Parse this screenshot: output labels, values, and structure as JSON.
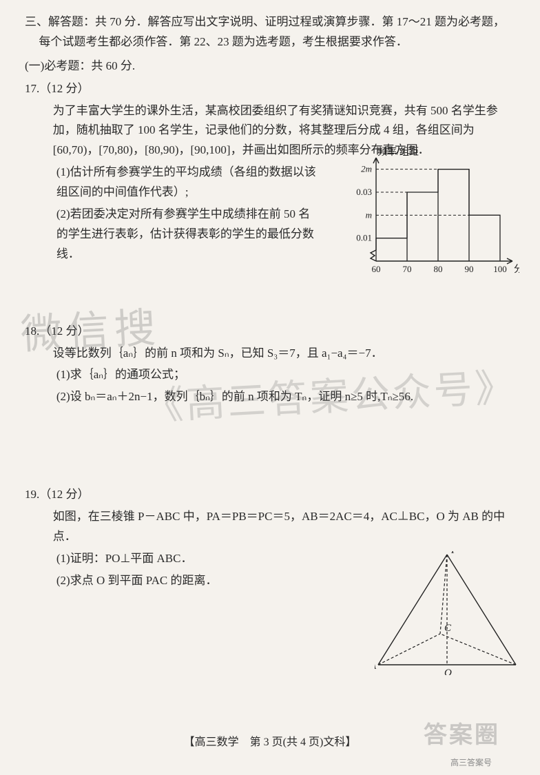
{
  "section": {
    "title": "三、解答题：共 70 分．解答应写出文字说明、证明过程或演算步骤．第 17～21 题为必考题，每个试题考生都必须作答．第 22、23 题为选考题，考生根据要求作答．",
    "part1": "(一)必考题：共 60 分."
  },
  "q17": {
    "num": "17.（12 分）",
    "p1": "为了丰富大学生的课外生活，某高校团委组织了有奖猜谜知识竞赛，共有 500 名学生参加，随机抽取了 100 名学生，记录他们的分数，将其整理后分成 4 组，各组区间为[60,70)，[70,80)，[80,90)，[90,100]，并画出如图所示的频率分布直方图．",
    "s1": "(1)估计所有参赛学生的平均成绩（各组的数据以该组区间的中间值作代表）;",
    "s2": "(2)若团委决定对所有参赛学生中成绩排在前 50 名的学生进行表彰，估计获得表彰的学生的最低分数线．",
    "chart": {
      "type": "histogram",
      "x_axis_label": "分数",
      "y_axis_label": "频率/组距",
      "x_ticks": [
        60,
        70,
        80,
        90,
        100
      ],
      "y_ticks_labeled": [
        {
          "v": 0.01,
          "l": "0.01"
        },
        {
          "v": 0.03,
          "l": "0.03"
        }
      ],
      "y_ticks_symbol": [
        {
          "v": 0.02,
          "l": "m"
        },
        {
          "v": 0.04,
          "l": "2m"
        }
      ],
      "bars": [
        {
          "x0": 60,
          "x1": 70,
          "h": 0.01
        },
        {
          "x0": 70,
          "x1": 80,
          "h": 0.03
        },
        {
          "x0": 80,
          "x1": 90,
          "h": 0.04
        },
        {
          "x0": 90,
          "x1": 100,
          "h": 0.02
        }
      ],
      "y_max": 0.045,
      "colors": {
        "axis": "#222222",
        "bg": "transparent"
      }
    }
  },
  "q18": {
    "num": "18.（12 分）",
    "p1": "设等比数列｛aₙ｝的前 n 项和为 Sₙ，已知 S₃＝7，且 a₁−a₄＝−7．",
    "s1": "(1)求｛aₙ｝的通项公式；",
    "s2": "(2)设 bₙ＝aₙ＋2n−1，数列｛bₙ｝的前 n 项和为 Tₙ，证明 n≥5 时,Tₙ≥56."
  },
  "q19": {
    "num": "19.（12 分）",
    "p1": "如图，在三棱锥 P－ABC 中，PA＝PB＝PC＝5，AB＝2AC＝4，AC⊥BC，O 为 AB 的中点．",
    "s1": "(1)证明：PO⊥平面 ABC．",
    "s2": "(2)求点 O 到平面 PAC 的距离．",
    "figure": {
      "type": "tetrahedron",
      "points": {
        "P": [
          105,
          5
        ],
        "A": [
          5,
          165
        ],
        "B": [
          205,
          165
        ],
        "O": [
          105,
          165
        ],
        "C": [
          95,
          120
        ]
      },
      "solid_edges": [
        [
          "P",
          "A"
        ],
        [
          "P",
          "B"
        ],
        [
          "A",
          "B"
        ]
      ],
      "dashed_edges": [
        [
          "P",
          "C"
        ],
        [
          "A",
          "C"
        ],
        [
          "B",
          "C"
        ],
        [
          "P",
          "O"
        ]
      ],
      "colors": {
        "line": "#222222"
      }
    }
  },
  "watermark": {
    "l1": "微信搜",
    "l2": "《高三答案公众号》"
  },
  "footer": "【高三数学　第 3 页(共 4 页)文科】",
  "stamp": "答案圈",
  "subfoot": "高三答案号"
}
